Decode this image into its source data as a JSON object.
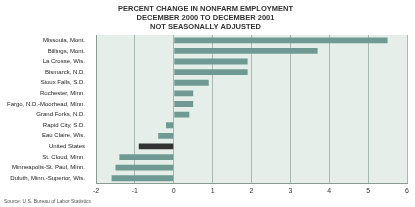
{
  "chart_data": {
    "type": "bar",
    "orientation": "horizontal",
    "title": [
      "PERCENT CHANGE IN NONFARM EMPLOYMENT",
      "DECEMBER 2000 TO DECEMBER 2001",
      "NOT SEASONALLY ADJUSTED"
    ],
    "source": "Source: U.S. Bureau of Labor Statistics",
    "categories": [
      "Missoula, Mont.",
      "Billings, Mont.",
      "La Crosse, Wis.",
      "Bismarck, N.D.",
      "Sioux Falls, S.D.",
      "Rochester, Minn.",
      "Fargo, N.D.-Moorhead, Minn.",
      "Grand Forks, N.D.",
      "Rapid City, S.D.",
      "Eau Claire, Wis.",
      "United States",
      "St. Cloud, Minn.",
      "Minneapolis-St. Paul, Minn.",
      "Duluth, Minn.-Superior, Wis."
    ],
    "values": [
      5.5,
      3.7,
      1.9,
      1.9,
      0.9,
      0.5,
      0.5,
      0.4,
      -0.2,
      -0.4,
      -0.9,
      -1.4,
      -1.5,
      -1.6
    ],
    "colors": [
      "#6f9a94",
      "#6f9a94",
      "#6f9a94",
      "#6f9a94",
      "#6f9a94",
      "#6f9a94",
      "#6f9a94",
      "#6f9a94",
      "#6f9a94",
      "#6f9a94",
      "#333333",
      "#6f9a94",
      "#6f9a94",
      "#6f9a94"
    ],
    "xlim": [
      -2,
      6
    ],
    "xticks": [
      -2,
      -1,
      0,
      1,
      2,
      3,
      4,
      5,
      6
    ],
    "grid": true
  }
}
